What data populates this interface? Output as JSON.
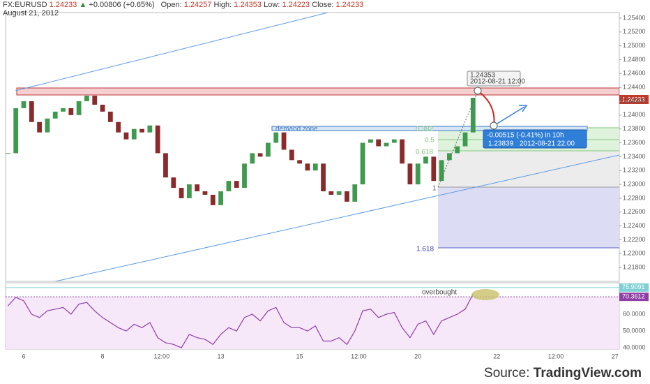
{
  "header": {
    "symbol": "FX:EURUSD",
    "last": "1.24233",
    "change": "+0.00806 (+0.65%)",
    "open_label": "Open:",
    "open": "1.24257",
    "high_label": "High:",
    "high": "1.24353",
    "low_label": "Low:",
    "low": "1.24223",
    "close_label": "Close:",
    "close": "1.24233",
    "date": "August 21, 2012"
  },
  "annotations": {
    "peak_price": "1.24353",
    "peak_time": "2012-08-21 12:00",
    "move": "-0.00515 (-0.41%) in 10h",
    "target_price": "1.23839",
    "target_time": "2012-08-21  22:00",
    "demand_zone": "demand zone",
    "fib_0382": "0.382",
    "fib_05": "0.5",
    "fib_0618": "0.618",
    "fib_1": "1",
    "fib_1618": "1.618",
    "overbought": "overbought",
    "price_tag": "1.24233"
  },
  "source": {
    "label": "Source:",
    "name": "TradingView.com"
  },
  "chart_data": [
    {
      "type": "candlestick",
      "up_color": "#3f9a4f",
      "down_color": "#8b2a2a",
      "grid": true,
      "xlim": [
        -0.46,
        15.11
      ],
      "xticks": [
        {
          "value": 0,
          "label": "6"
        },
        {
          "value": 2,
          "label": "8"
        },
        {
          "value": 3.5,
          "label": "12:00"
        },
        {
          "value": 5,
          "label": "13"
        },
        {
          "value": 7,
          "label": "15"
        },
        {
          "value": 8.5,
          "label": "12:00"
        },
        {
          "value": 10,
          "label": "20"
        },
        {
          "value": 12,
          "label": "22"
        },
        {
          "value": 13.5,
          "label": "12:00"
        },
        {
          "value": 15,
          "label": "27"
        }
      ],
      "ylim": [
        1.216,
        1.2548
      ],
      "yticks": [
        {
          "value": 1.218,
          "label": "1.21800"
        },
        {
          "value": 1.22,
          "label": "1.22000"
        },
        {
          "value": 1.222,
          "label": "1.22200"
        },
        {
          "value": 1.224,
          "label": "1.22400"
        },
        {
          "value": 1.226,
          "label": "1.22600"
        },
        {
          "value": 1.228,
          "label": "1.22800"
        },
        {
          "value": 1.23,
          "label": "1.23000"
        },
        {
          "value": 1.232,
          "label": "1.23200"
        },
        {
          "value": 1.234,
          "label": "1.23400"
        },
        {
          "value": 1.236,
          "label": "1.23600"
        },
        {
          "value": 1.238,
          "label": "1.23800"
        },
        {
          "value": 1.24,
          "label": "1.24000"
        },
        {
          "value": 1.242,
          "label": "1.24200"
        },
        {
          "value": 1.244,
          "label": "1.24400"
        },
        {
          "value": 1.246,
          "label": "1.24600"
        },
        {
          "value": 1.248,
          "label": "1.24800"
        },
        {
          "value": 1.25,
          "label": "1.25000"
        },
        {
          "value": 1.252,
          "label": "1.25200"
        },
        {
          "value": 1.254,
          "label": "1.25400"
        }
      ],
      "x": [
        -0.4,
        -0.2,
        0,
        0.2,
        0.4,
        0.6,
        0.8,
        1,
        1.2,
        1.4,
        1.6,
        1.8,
        2,
        2.2,
        2.4,
        2.6,
        2.8,
        3,
        3.2,
        3.4,
        3.6,
        3.8,
        4,
        4.2,
        4.4,
        4.6,
        4.8,
        5,
        5.2,
        5.4,
        5.6,
        5.8,
        6,
        6.2,
        6.4,
        6.6,
        6.8,
        7,
        7.2,
        7.4,
        7.6,
        7.8,
        8,
        8.2,
        8.4,
        8.6,
        8.8,
        9,
        9.2,
        9.4,
        9.6,
        9.8,
        10,
        10.2,
        10.4,
        10.6,
        10.8,
        11,
        11.2,
        11.4
      ],
      "values": [
        1.2345,
        1.241,
        1.242,
        1.239,
        1.2375,
        1.2395,
        1.2405,
        1.241,
        1.24,
        1.242,
        1.2428,
        1.2415,
        1.2405,
        1.239,
        1.2375,
        1.2365,
        1.238,
        1.2375,
        1.2385,
        1.2345,
        1.231,
        1.2295,
        1.228,
        1.23,
        1.229,
        1.2285,
        1.227,
        1.229,
        1.2305,
        1.2295,
        1.233,
        1.2345,
        1.234,
        1.236,
        1.2375,
        1.235,
        1.2335,
        1.233,
        1.232,
        1.233,
        1.229,
        1.2285,
        1.229,
        1.2275,
        1.23,
        1.236,
        1.2365,
        1.2355,
        1.236,
        1.2365,
        1.233,
        1.23,
        1.233,
        1.234,
        1.2305,
        1.2335,
        1.2345,
        1.2355,
        1.2375,
        1.2425
      ]
    },
    {
      "type": "line",
      "color": "#8e3fa5",
      "xlim": [
        -0.46,
        15.11
      ],
      "ylim": [
        39.2,
        78.75
      ],
      "yticks": [
        {
          "value": 40,
          "label": "40.0000"
        },
        {
          "value": 50,
          "label": "50.0000"
        },
        {
          "value": 60,
          "label": "60.0000"
        }
      ],
      "levels": [
        75.9091,
        70.3612
      ],
      "x": [
        -0.4,
        -0.2,
        0,
        0.2,
        0.4,
        0.6,
        0.8,
        1,
        1.2,
        1.4,
        1.6,
        1.8,
        2,
        2.2,
        2.4,
        2.6,
        2.8,
        3,
        3.2,
        3.4,
        3.6,
        3.8,
        4,
        4.2,
        4.4,
        4.6,
        4.8,
        5,
        5.2,
        5.4,
        5.6,
        5.8,
        6,
        6.2,
        6.4,
        6.6,
        6.8,
        7,
        7.2,
        7.4,
        7.6,
        7.8,
        8,
        8.2,
        8.4,
        8.6,
        8.8,
        9,
        9.2,
        9.4,
        9.6,
        9.8,
        10,
        10.2,
        10.4,
        10.6,
        10.8,
        11,
        11.2,
        11.4
      ],
      "values": [
        65,
        70,
        68,
        60,
        58,
        62,
        63,
        64,
        60,
        66,
        67,
        62,
        58,
        55,
        52,
        50,
        54,
        52,
        55,
        46,
        43,
        42,
        40,
        48,
        46,
        45,
        42,
        48,
        52,
        50,
        58,
        60,
        56,
        62,
        64,
        55,
        52,
        52,
        50,
        53,
        44,
        44,
        46,
        42,
        50,
        62,
        63,
        58,
        60,
        61,
        52,
        46,
        54,
        56,
        48,
        56,
        58,
        60,
        63,
        72
      ]
    }
  ]
}
